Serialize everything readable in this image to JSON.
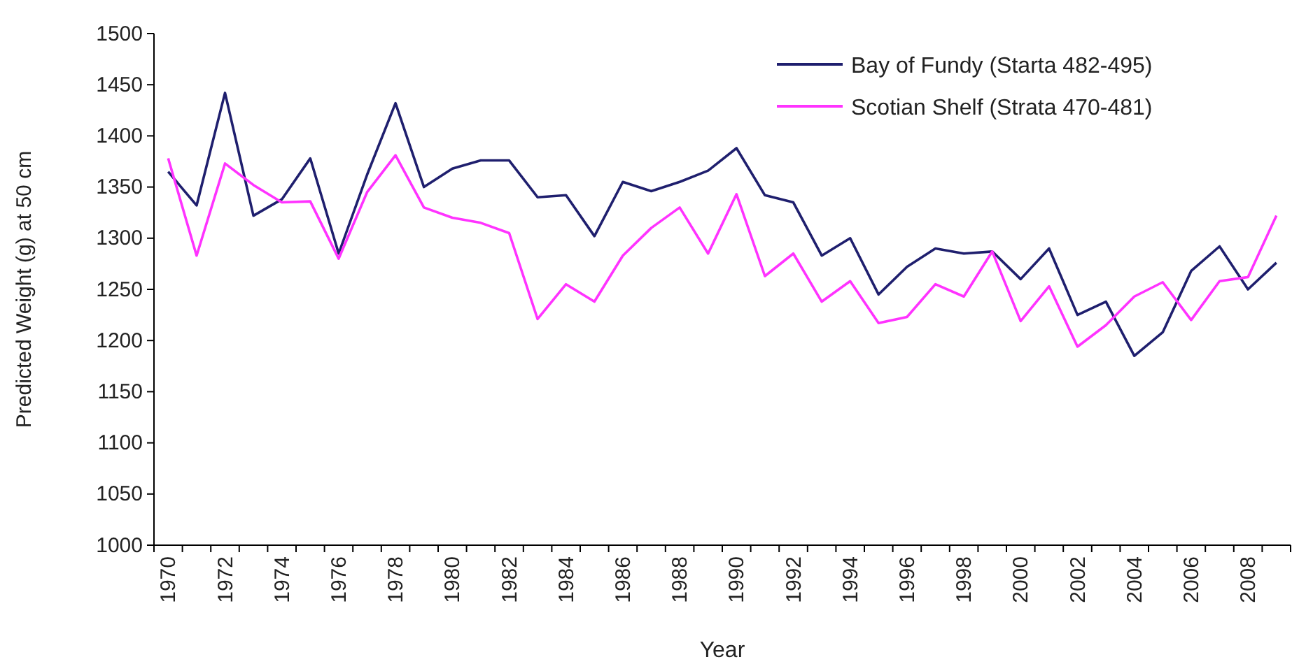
{
  "chart_data": {
    "type": "line",
    "xlabel": "Year",
    "ylabel": "Predicted Weight (g) at 50 cm",
    "categories": [
      "1970",
      null,
      "1972",
      null,
      "1974",
      null,
      "1976",
      null,
      "1978",
      null,
      "1980",
      null,
      "1982",
      null,
      "1984",
      null,
      "1986",
      null,
      "1988",
      null,
      "1990",
      null,
      "1992",
      null,
      "1994",
      null,
      "1996",
      null,
      "1998",
      null,
      "2000",
      null,
      "2002",
      null,
      "2004",
      null,
      "2006",
      null,
      "2008",
      null
    ],
    "series": [
      {
        "name": "Bay of Fundy (Starta 482-495)",
        "color": "#1f1f6e",
        "values": [
          1365,
          1332,
          1442,
          1322,
          1338,
          1378,
          1285,
          1362,
          1432,
          1350,
          1368,
          1376,
          1376,
          1340,
          1342,
          1302,
          1355,
          1346,
          1355,
          1366,
          1388,
          1342,
          1335,
          1283,
          1300,
          1245,
          1272,
          1290,
          1285,
          1287,
          1260,
          1290,
          1225,
          1238,
          1185,
          1208,
          1268,
          1292,
          1250,
          1276
        ]
      },
      {
        "name": "Scotian Shelf (Strata 470-481)",
        "color": "#ff33ff",
        "values": [
          1378,
          1283,
          1373,
          1352,
          1335,
          1336,
          1280,
          1345,
          1381,
          1330,
          1320,
          1315,
          1305,
          1221,
          1255,
          1238,
          1283,
          1310,
          1330,
          1285,
          1343,
          1263,
          1285,
          1238,
          1258,
          1217,
          1223,
          1255,
          1243,
          1287,
          1219,
          1253,
          1194,
          1215,
          1243,
          1257,
          1220,
          1258,
          1262,
          1322
        ]
      }
    ],
    "ylim": [
      1000,
      1500
    ],
    "yticks": [
      1000,
      1050,
      1100,
      1150,
      1200,
      1250,
      1300,
      1350,
      1400,
      1450,
      1500
    ],
    "grid": false,
    "legend": "top right",
    "marker": "none",
    "line_style": "solid"
  }
}
